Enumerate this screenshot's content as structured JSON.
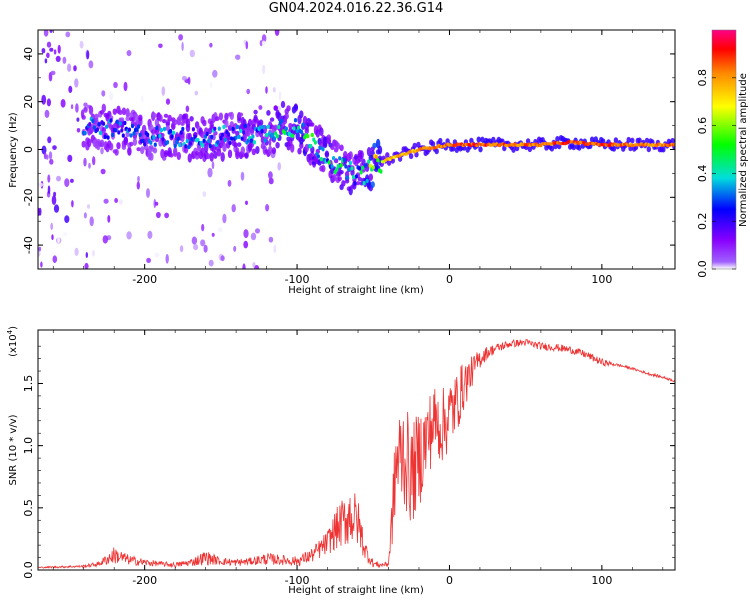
{
  "title": "GN04.2024.016.22.36.G14",
  "chart_data": [
    {
      "type": "heatmap",
      "xlabel": "Height of straight line (km)",
      "ylabel": "Frequency (Hz)",
      "xlim": [
        -270,
        148
      ],
      "ylim": [
        -50,
        50
      ],
      "x_ticks": [
        -200,
        -100,
        0,
        100
      ],
      "y_ticks": [
        -40,
        -20,
        0,
        20,
        40
      ],
      "colorbar": {
        "label": "Normalized spectral amplitude",
        "range": [
          0,
          1
        ],
        "ticks": [
          "0.0",
          "0.2",
          "0.4",
          "0.6",
          "0.8"
        ],
        "colormap": [
          "#ffffff",
          "#8800ff",
          "#0000ff",
          "#00dddd",
          "#00ff00",
          "#ffff00",
          "#ff8800",
          "#ff0000"
        ]
      },
      "ridge": {
        "x": [
          -240,
          -220,
          -200,
          -180,
          -160,
          -140,
          -120,
          -110,
          -100,
          -90,
          -80,
          -70,
          -60,
          -55,
          -50,
          -40,
          -30,
          -20,
          -10,
          0,
          20,
          40,
          60,
          80,
          100,
          120,
          148
        ],
        "y": [
          10,
          8,
          6,
          5,
          5,
          6,
          7,
          10,
          9,
          3,
          -3,
          -8,
          -11,
          -10,
          -7,
          -4,
          -2,
          0,
          1,
          2,
          2,
          2,
          2,
          3,
          2,
          2,
          2
        ],
        "amplitude": [
          0.3,
          0.35,
          0.3,
          0.35,
          0.35,
          0.35,
          0.4,
          0.45,
          0.5,
          0.5,
          0.45,
          0.45,
          0.4,
          0.5,
          0.7,
          0.8,
          0.85,
          0.85,
          0.9,
          0.9,
          0.95,
          0.9,
          0.9,
          0.95,
          0.95,
          0.9,
          0.9
        ]
      }
    },
    {
      "type": "line",
      "xlabel": "Height of straight line (km)",
      "ylabel": "SNR (10 * v/v)",
      "scale_label": "(x10",
      "scale_exp": "4",
      "xlim": [
        -270,
        148
      ],
      "ylim": [
        0,
        1.93
      ],
      "x_ticks": [
        -200,
        -100,
        0,
        100
      ],
      "y_ticks": [
        "0.0",
        "0.5",
        "1.0",
        "1.5"
      ],
      "color": "#ee3333",
      "series": [
        {
          "x": [
            -270,
            -240,
            -230,
            -220,
            -210,
            -200,
            -190,
            -180,
            -170,
            -160,
            -150,
            -140,
            -130,
            -120,
            -110,
            -100,
            -90,
            -80,
            -75,
            -70,
            -65,
            -60,
            -55,
            -50,
            -45,
            -40,
            -38,
            -35,
            -30,
            -25,
            -20,
            -15,
            -10,
            -5,
            0,
            5,
            10,
            15,
            20,
            25,
            30,
            40,
            50,
            60,
            70,
            80,
            90,
            100,
            110,
            120,
            130,
            140,
            148
          ],
          "y": [
            0.02,
            0.03,
            0.05,
            0.12,
            0.08,
            0.06,
            0.05,
            0.04,
            0.06,
            0.1,
            0.07,
            0.06,
            0.07,
            0.09,
            0.08,
            0.07,
            0.12,
            0.22,
            0.32,
            0.38,
            0.45,
            0.38,
            0.15,
            0.05,
            0.04,
            0.05,
            0.35,
            0.85,
            0.95,
            0.75,
            0.9,
            1.05,
            1.2,
            1.15,
            1.25,
            1.35,
            1.5,
            1.6,
            1.7,
            1.75,
            1.78,
            1.82,
            1.83,
            1.8,
            1.79,
            1.77,
            1.73,
            1.67,
            1.65,
            1.62,
            1.58,
            1.55,
            1.52
          ],
          "noise": [
            0.005,
            0.01,
            0.02,
            0.07,
            0.04,
            0.03,
            0.02,
            0.02,
            0.03,
            0.06,
            0.03,
            0.03,
            0.03,
            0.05,
            0.04,
            0.04,
            0.06,
            0.1,
            0.16,
            0.2,
            0.26,
            0.2,
            0.08,
            0.03,
            0.02,
            0.02,
            0.2,
            0.4,
            0.45,
            0.4,
            0.4,
            0.35,
            0.3,
            0.3,
            0.3,
            0.25,
            0.2,
            0.12,
            0.08,
            0.05,
            0.04,
            0.03,
            0.03,
            0.03,
            0.03,
            0.03,
            0.03,
            0.03,
            0.01,
            0.01,
            0.01,
            0.01,
            0.01
          ]
        }
      ]
    }
  ]
}
